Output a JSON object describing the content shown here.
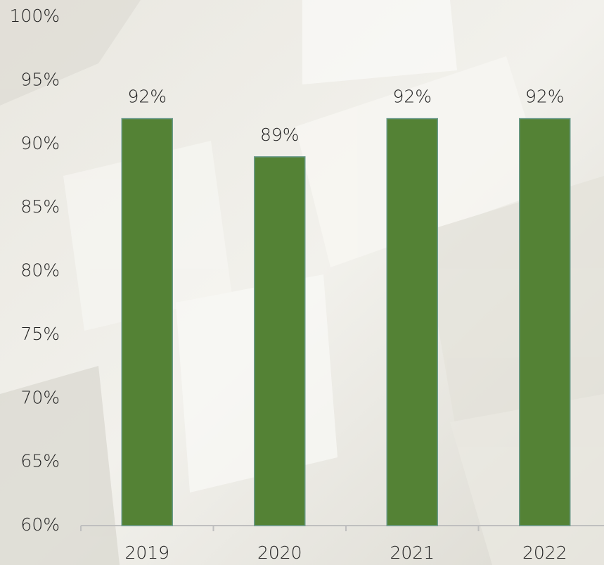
{
  "chart_data": {
    "type": "bar",
    "categories": [
      "2019",
      "2020",
      "2021",
      "2022"
    ],
    "values": [
      92,
      89,
      92,
      92
    ],
    "value_labels": [
      "92%",
      "89%",
      "92%",
      "92%"
    ],
    "color": "#548235",
    "ylim": [
      60,
      100
    ],
    "yticks": [
      {
        "value": 60,
        "label": "60%"
      },
      {
        "value": 65,
        "label": "65%"
      },
      {
        "value": 70,
        "label": "70%"
      },
      {
        "value": 75,
        "label": "75%"
      },
      {
        "value": 80,
        "label": "80%"
      },
      {
        "value": 85,
        "label": "85%"
      },
      {
        "value": 90,
        "label": "90%"
      },
      {
        "value": 95,
        "label": "95%"
      },
      {
        "value": 100,
        "label": "100%"
      }
    ],
    "grid": false
  }
}
